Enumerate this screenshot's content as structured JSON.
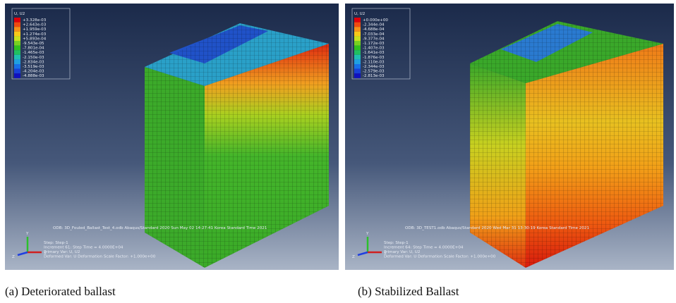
{
  "panels": [
    {
      "legend": {
        "title": "U, U2",
        "entries": [
          "+3.328e-03",
          "+2.643e-03",
          "+1.959e-03",
          "+1.274e-03",
          "+5.893e-04",
          "-9.543e-05",
          "-7.801e-04",
          "-1.465e-03",
          "-2.150e-03",
          "-2.834e-03",
          "-3.519e-03",
          "-4.204e-03",
          "-4.888e-03"
        ]
      },
      "odb": "ODB: 3D_Fouled_Ballast_Test_4.odb    Abaqus/Standard 2020    Sun May 02 14:27:41 Korea Standard Time 2021",
      "info": [
        "Step: Step-1",
        "Increment    61: Step Time =    4.0000E+04",
        "Primary Var: U, U2",
        "Deformed Var: U   Deformation Scale Factor: +1.000e+00"
      ],
      "triad": [
        "Y",
        "Z",
        "X"
      ],
      "caption": "(a) Deteriorated ballast"
    },
    {
      "legend": {
        "title": "U, U2",
        "entries": [
          "+0.000e+00",
          "-2.344e-04",
          "-4.688e-04",
          "-7.033e-04",
          "-9.377e-04",
          "-1.172e-03",
          "-1.407e-03",
          "-1.641e-03",
          "-1.876e-03",
          "-2.110e-03",
          "-2.344e-03",
          "-2.579e-03",
          "-2.813e-03"
        ]
      },
      "odb": "ODB: 3D_TEST1.odb    Abaqus/Standard 2020    Wed Mar 31 13:30:19 Korea Standard Time 2021",
      "info": [
        "Step: Step-1",
        "Increment    64: Step Time =    4.0000E+04",
        "Primary Var: U, U2",
        "Deformed Var: U   Deformation Scale Factor: +1.000e+00"
      ],
      "triad": [
        "Y",
        "Z",
        "X"
      ],
      "caption": "(b) Stabilized Ballast"
    }
  ]
}
